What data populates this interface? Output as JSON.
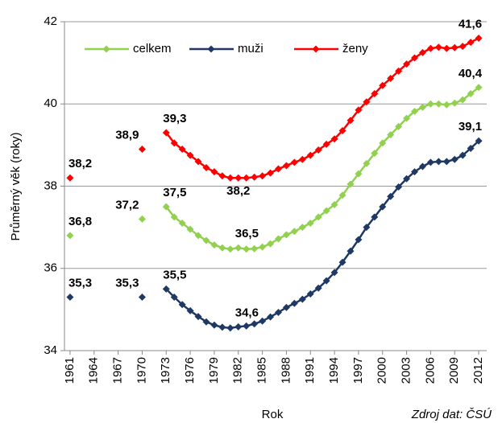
{
  "chart_data": {
    "type": "line",
    "y_label": "Průměrný věk (roky)",
    "x_label": "Rok",
    "source": "Zdroj dat: ČSÚ",
    "x": [
      1961,
      1962,
      1963,
      1964,
      1965,
      1966,
      1967,
      1968,
      1969,
      1970,
      1971,
      1972,
      1973,
      1974,
      1975,
      1976,
      1977,
      1978,
      1979,
      1980,
      1981,
      1982,
      1983,
      1984,
      1985,
      1986,
      1987,
      1988,
      1989,
      1990,
      1991,
      1992,
      1993,
      1994,
      1995,
      1996,
      1997,
      1998,
      1999,
      2000,
      2001,
      2002,
      2003,
      2004,
      2005,
      2006,
      2007,
      2008,
      2009,
      2010,
      2011,
      2012
    ],
    "xlim": [
      1960,
      2013
    ],
    "xticks": [
      1961,
      1964,
      1967,
      1970,
      1973,
      1976,
      1979,
      1982,
      1985,
      1988,
      1991,
      1994,
      1997,
      2000,
      2003,
      2006,
      2009,
      2012
    ],
    "ylim": [
      34,
      42
    ],
    "yticks": [
      34,
      36,
      38,
      40,
      42
    ],
    "grid": true,
    "legend": "top-left",
    "series": [
      {
        "name": "celkem",
        "color": "#92d050",
        "values": [
          36.8,
          null,
          null,
          null,
          null,
          null,
          null,
          null,
          null,
          37.2,
          null,
          null,
          37.5,
          37.25,
          37.1,
          36.95,
          36.8,
          36.68,
          36.57,
          36.5,
          36.47,
          36.5,
          36.47,
          36.48,
          36.52,
          36.6,
          36.72,
          36.82,
          36.9,
          37.0,
          37.1,
          37.25,
          37.4,
          37.55,
          37.78,
          38.05,
          38.3,
          38.55,
          38.8,
          39.05,
          39.25,
          39.45,
          39.65,
          39.82,
          39.92,
          40.0,
          40.0,
          39.98,
          40.02,
          40.1,
          40.25,
          40.4
        ],
        "value_labels": [
          "36,8",
          null,
          null,
          null,
          null,
          null,
          null,
          null,
          null,
          "37,2",
          null,
          null,
          "37,5",
          null,
          null,
          null,
          null,
          null,
          null,
          null,
          null,
          "36,5",
          null,
          null,
          null,
          null,
          null,
          null,
          null,
          null,
          null,
          null,
          null,
          null,
          null,
          null,
          null,
          null,
          null,
          null,
          null,
          null,
          null,
          null,
          null,
          null,
          null,
          null,
          null,
          null,
          null,
          "40,4"
        ]
      },
      {
        "name": "muži",
        "color": "#1f3864",
        "values": [
          35.3,
          null,
          null,
          null,
          null,
          null,
          null,
          null,
          null,
          35.3,
          null,
          null,
          35.5,
          35.3,
          35.12,
          34.97,
          34.83,
          34.7,
          34.62,
          34.57,
          34.55,
          34.58,
          34.6,
          34.65,
          34.72,
          34.82,
          34.93,
          35.05,
          35.15,
          35.25,
          35.38,
          35.52,
          35.7,
          35.9,
          36.15,
          36.42,
          36.7,
          37.0,
          37.25,
          37.5,
          37.75,
          37.98,
          38.18,
          38.35,
          38.48,
          38.58,
          38.6,
          38.6,
          38.65,
          38.75,
          38.92,
          39.1
        ],
        "value_labels": [
          "35,3",
          null,
          null,
          null,
          null,
          null,
          null,
          null,
          null,
          "35,3",
          null,
          null,
          "35,5",
          null,
          null,
          null,
          null,
          null,
          null,
          null,
          null,
          "34,6",
          null,
          null,
          null,
          null,
          null,
          null,
          null,
          null,
          null,
          null,
          null,
          null,
          null,
          null,
          null,
          null,
          null,
          null,
          null,
          null,
          null,
          null,
          null,
          null,
          null,
          null,
          null,
          null,
          null,
          "39,1"
        ]
      },
      {
        "name": "ženy",
        "color": "#ff0000",
        "values": [
          38.2,
          null,
          null,
          null,
          null,
          null,
          null,
          null,
          null,
          38.9,
          null,
          null,
          39.3,
          39.05,
          38.9,
          38.75,
          38.6,
          38.45,
          38.35,
          38.25,
          38.2,
          38.2,
          38.2,
          38.22,
          38.25,
          38.32,
          38.42,
          38.5,
          38.58,
          38.65,
          38.75,
          38.88,
          39.02,
          39.15,
          39.35,
          39.6,
          39.85,
          40.05,
          40.25,
          40.45,
          40.62,
          40.8,
          40.97,
          41.12,
          41.25,
          41.35,
          41.38,
          41.35,
          41.37,
          41.4,
          41.5,
          41.6
        ],
        "value_labels": [
          "38,2",
          null,
          null,
          null,
          null,
          null,
          null,
          null,
          null,
          "38,9",
          null,
          null,
          "39,3",
          null,
          null,
          null,
          null,
          null,
          null,
          null,
          null,
          "38,2",
          null,
          null,
          null,
          null,
          null,
          null,
          null,
          null,
          null,
          null,
          null,
          null,
          null,
          null,
          null,
          null,
          null,
          null,
          null,
          null,
          null,
          null,
          null,
          null,
          null,
          null,
          null,
          null,
          null,
          "41,6"
        ]
      }
    ]
  }
}
